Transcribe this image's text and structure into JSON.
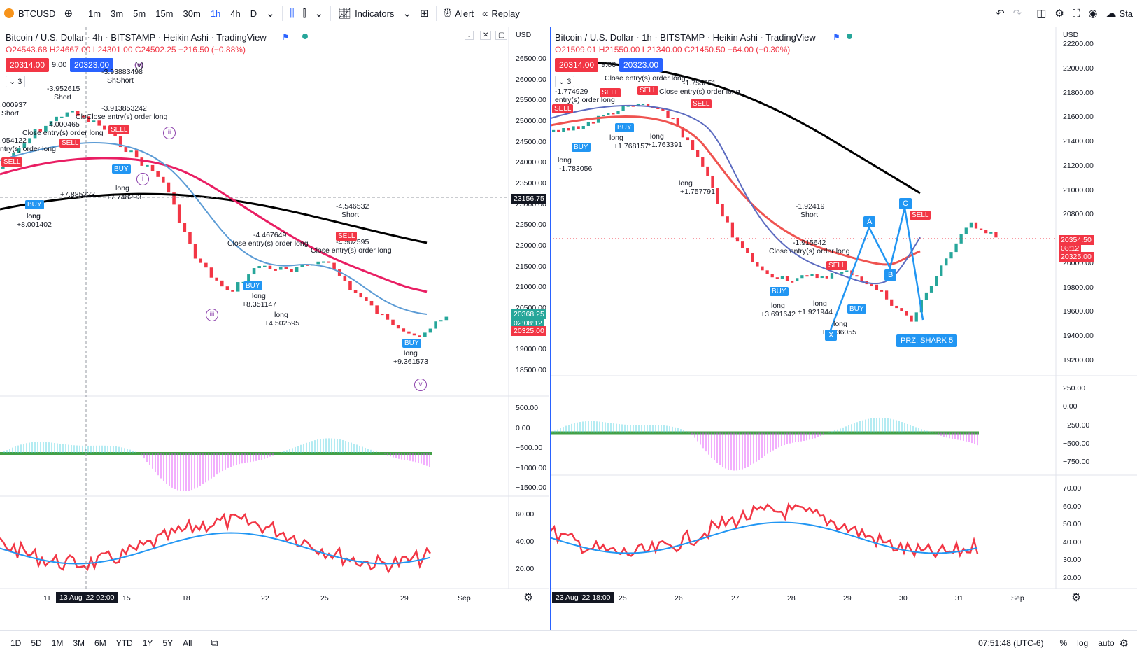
{
  "toolbar": {
    "symbol": "BTCUSD",
    "timeframes": [
      "1m",
      "3m",
      "5m",
      "15m",
      "30m",
      "1h",
      "4h",
      "D"
    ],
    "active_timeframe": "1h",
    "indicators_label": "Indicators",
    "alert_label": "Alert",
    "replay_label": "Replay",
    "right_label": "Sta"
  },
  "left_chart": {
    "title": "Bitcoin / U.S. Dollar · 4h · BITSTAMP · Heikin Ashi · TradingView",
    "ohlc": "O24543.68 H24667.00 L24301.00 C24502.25 −216.50 (−0.88%)",
    "bid": "20314.00",
    "spread": "9.00",
    "ask": "20323.00",
    "collapse_count": "3",
    "currency": "USD",
    "price_axis": [
      "26500.00",
      "26000.00",
      "25500.00",
      "25000.00",
      "24500.00",
      "24000.00",
      "23500.00",
      "23000.00",
      "22500.00",
      "22000.00",
      "21500.00",
      "21000.00",
      "20500.00",
      "19500.00",
      "19000.00",
      "18500.00"
    ],
    "crosshair_price": "23156.75",
    "last_price": "20368.25",
    "countdown": "02:08:12",
    "ask_tag": "20325.00",
    "macd_axis": [
      "500.00",
      "0.00",
      "−500.00",
      "−1000.00",
      "−1500.00"
    ],
    "osc_axis": [
      "60.00",
      "40.00",
      "20.00"
    ],
    "time_axis": [
      "11",
      "15",
      "18",
      "22",
      "25",
      "29",
      "Sep"
    ],
    "time_cursor": "13 Aug '22  02:00",
    "annotations": [
      {
        "text": ".000937"
      },
      {
        "text": "Short"
      },
      {
        "text": "-3.952615"
      },
      {
        "text": "Short"
      },
      {
        "text": "-3.93883498"
      },
      {
        "text": "ShShort"
      },
      {
        "text": "(v)"
      },
      {
        "text": "4.000465"
      },
      {
        "text": "-3.913853242"
      },
      {
        "text": "Close entry(s) order long"
      },
      {
        "text": "CloClose entry(s) order long"
      },
      {
        "text": ".054122"
      },
      {
        "text": "ntry(s) order long"
      },
      {
        "text": "long"
      },
      {
        "text": "+7.885223"
      },
      {
        "text": "long"
      },
      {
        "text": "+7.748293"
      },
      {
        "text": "long"
      },
      {
        "text": "+8.001402"
      },
      {
        "text": "-4.546532"
      },
      {
        "text": "Short"
      },
      {
        "text": "-4.467649"
      },
      {
        "text": "Close entry(s) order long"
      },
      {
        "text": "-4.502595"
      },
      {
        "text": "Close entry(s) order long"
      },
      {
        "text": "long"
      },
      {
        "text": "+8.351147"
      },
      {
        "text": "long"
      },
      {
        "text": "+4.502595"
      },
      {
        "text": "long"
      },
      {
        "text": "+9.361573"
      }
    ],
    "waves": [
      "ii",
      "i",
      "iii",
      "v",
      "(v)"
    ],
    "buy_label": "BUY",
    "sell_label": "SELL"
  },
  "right_chart": {
    "title": "Bitcoin / U.S. Dollar · 1h · BITSTAMP · Heikin Ashi · TradingView",
    "ohlc": "O21509.01 H21550.00 L21340.00 C21450.50 −64.00 (−0.30%)",
    "bid": "20314.00",
    "spread": "9.00",
    "ask": "20323.00",
    "collapse_count": "3",
    "currency": "USD",
    "price_axis": [
      "22200.00",
      "22000.00",
      "21800.00",
      "21600.00",
      "21400.00",
      "21200.00",
      "21000.00",
      "20800.00",
      "20600.00",
      "20000.00",
      "19800.00",
      "19600.00",
      "19400.00",
      "19200.00"
    ],
    "last_price": "20354.50",
    "countdown": "08:12",
    "ask_tag": "20325.00",
    "macd_axis": [
      "250.00",
      "0.00",
      "−250.00",
      "−500.00",
      "−750.00"
    ],
    "osc_axis": [
      "70.00",
      "60.00",
      "50.00",
      "40.00",
      "30.00",
      "20.00"
    ],
    "time_axis": [
      "25",
      "26",
      "27",
      "28",
      "29",
      "30",
      "31",
      "Sep"
    ],
    "time_cursor": "23 Aug '22  18:00",
    "annotations": [
      {
        "text": "-1.774929"
      },
      {
        "text": "entry(s) order long"
      },
      {
        "text": "long"
      },
      {
        "text": "-1.783056"
      },
      {
        "text": "Close entry(s) order long"
      },
      {
        "text": "-1.755851"
      },
      {
        "text": "Close entry(s) order long"
      },
      {
        "text": "long"
      },
      {
        "text": "+1.768157"
      },
      {
        "text": "long"
      },
      {
        "text": "+1.763391"
      },
      {
        "text": "long"
      },
      {
        "text": "+1.757791"
      },
      {
        "text": "-1.92419"
      },
      {
        "text": "Short"
      },
      {
        "text": "-1.915642"
      },
      {
        "text": "Close entry(s) order long"
      },
      {
        "text": "long"
      },
      {
        "text": "+3.691642"
      },
      {
        "text": "long"
      },
      {
        "text": "+1.921944"
      },
      {
        "text": "long"
      },
      {
        "text": "+1.936055"
      }
    ],
    "pattern_points": [
      "A",
      "B",
      "C",
      "X"
    ],
    "prz_label": "PRZ: SHARK 5",
    "buy_label": "BUY",
    "sell_label": "SELL"
  },
  "bottom_bar": {
    "ranges": [
      "1D",
      "5D",
      "1M",
      "3M",
      "6M",
      "YTD",
      "1Y",
      "5Y",
      "All"
    ],
    "clock": "07:51:48 (UTC-6)",
    "percent_label": "%",
    "log_label": "log",
    "auto_label": "auto"
  },
  "colors": {
    "up": "#26a69a",
    "down": "#f23645",
    "ma_black": "#000000",
    "ma_pink": "#e91e63",
    "ma_blue": "#5b9bd5",
    "zigzag": "#8e44ad",
    "accent": "#2962ff"
  }
}
